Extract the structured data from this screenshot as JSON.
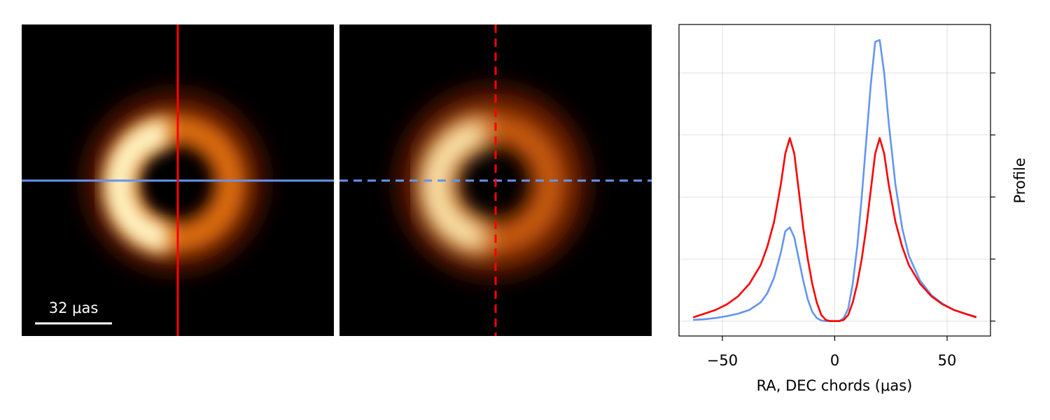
{
  "scale_bar_label": "32 μas",
  "chart_data": {
    "type": "line",
    "x_label": "RA, DEC chords (μas)",
    "y_label": "Profile",
    "x": [
      -63,
      -58,
      -53,
      -48,
      -43,
      -38,
      -33,
      -30,
      -27,
      -24,
      -22,
      -20,
      -18,
      -16,
      -14,
      -12,
      -10,
      -8,
      -6,
      -4,
      -2,
      0,
      2,
      4,
      6,
      8,
      10,
      12,
      14,
      16,
      18,
      20,
      22,
      24,
      27,
      30,
      33,
      38,
      43,
      48,
      53,
      58,
      63
    ],
    "series": [
      {
        "color": "#6495ed",
        "values": [
          0.02,
          0.03,
          0.05,
          0.08,
          0.12,
          0.18,
          0.3,
          0.45,
          0.7,
          1.1,
          1.45,
          1.51,
          1.35,
          1.0,
          0.65,
          0.35,
          0.15,
          0.05,
          0.01,
          0,
          0,
          0,
          0,
          0.05,
          0.2,
          0.6,
          1.2,
          2.0,
          2.9,
          3.8,
          4.5,
          4.53,
          4.0,
          3.2,
          2.2,
          1.5,
          1.05,
          0.65,
          0.42,
          0.28,
          0.18,
          0.12,
          0.07
        ]
      },
      {
        "color": "#ff0000",
        "values": [
          0.06,
          0.12,
          0.18,
          0.27,
          0.4,
          0.6,
          0.9,
          1.2,
          1.6,
          2.2,
          2.7,
          2.95,
          2.7,
          2.1,
          1.5,
          1.0,
          0.6,
          0.3,
          0.1,
          0.02,
          0,
          0,
          0,
          0.02,
          0.1,
          0.3,
          0.6,
          1.0,
          1.5,
          2.1,
          2.7,
          2.95,
          2.7,
          2.2,
          1.6,
          1.2,
          0.9,
          0.6,
          0.4,
          0.27,
          0.18,
          0.12,
          0.06
        ]
      }
    ],
    "xlim": [
      -69.3,
      69.3
    ],
    "xticks": [
      {
        "value": -50,
        "label": "−50"
      },
      0,
      50
    ],
    "ylim": [
      -0.24,
      4.78
    ],
    "yticks": [
      0,
      1,
      2,
      3,
      4
    ],
    "grid": true
  }
}
